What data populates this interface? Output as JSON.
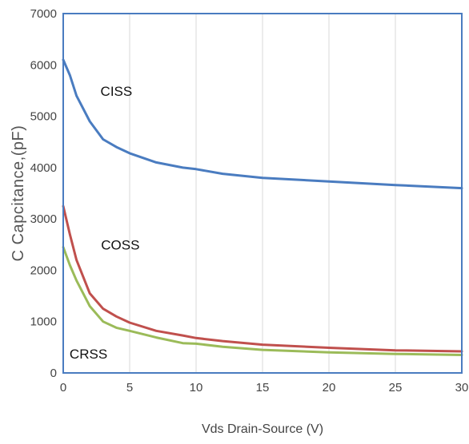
{
  "chart_data": {
    "type": "line",
    "xlabel": "Vds Drain-Source (V)",
    "ylabel": "C Capcitance,(pF)",
    "xlim": [
      0,
      30
    ],
    "ylim": [
      0,
      7000
    ],
    "x_ticks": [
      0,
      5,
      10,
      15,
      20,
      25,
      30
    ],
    "y_ticks": [
      0,
      1000,
      2000,
      3000,
      4000,
      5000,
      6000,
      7000
    ],
    "grid": "vertical",
    "series": [
      {
        "name": "CISS",
        "color": "#4a7cc0",
        "points": [
          [
            0,
            6100
          ],
          [
            0.5,
            5800
          ],
          [
            1,
            5400
          ],
          [
            2,
            4900
          ],
          [
            3,
            4550
          ],
          [
            4,
            4400
          ],
          [
            5,
            4280
          ],
          [
            7,
            4100
          ],
          [
            9,
            4000
          ],
          [
            10,
            3970
          ],
          [
            12,
            3880
          ],
          [
            15,
            3800
          ],
          [
            20,
            3730
          ],
          [
            25,
            3660
          ],
          [
            30,
            3600
          ]
        ]
      },
      {
        "name": "COSS",
        "color": "#c0504d",
        "points": [
          [
            0,
            3250
          ],
          [
            0.5,
            2700
          ],
          [
            1,
            2200
          ],
          [
            2,
            1550
          ],
          [
            3,
            1250
          ],
          [
            4,
            1100
          ],
          [
            5,
            980
          ],
          [
            7,
            820
          ],
          [
            9,
            730
          ],
          [
            10,
            680
          ],
          [
            12,
            620
          ],
          [
            15,
            550
          ],
          [
            20,
            490
          ],
          [
            25,
            440
          ],
          [
            30,
            420
          ]
        ]
      },
      {
        "name": "CRSS",
        "color": "#9bbb59",
        "points": [
          [
            0,
            2450
          ],
          [
            0.5,
            2100
          ],
          [
            1,
            1800
          ],
          [
            2,
            1300
          ],
          [
            3,
            1000
          ],
          [
            4,
            880
          ],
          [
            5,
            820
          ],
          [
            7,
            690
          ],
          [
            9,
            580
          ],
          [
            10,
            570
          ],
          [
            12,
            510
          ],
          [
            15,
            450
          ],
          [
            20,
            400
          ],
          [
            25,
            370
          ],
          [
            30,
            350
          ]
        ]
      }
    ],
    "labels": [
      {
        "text": "CISS",
        "x": 4,
        "y": 5400
      },
      {
        "text": "COSS",
        "x": 4.3,
        "y": 2400
      },
      {
        "text": "CRSS",
        "x": 1.9,
        "y": 280
      }
    ]
  }
}
